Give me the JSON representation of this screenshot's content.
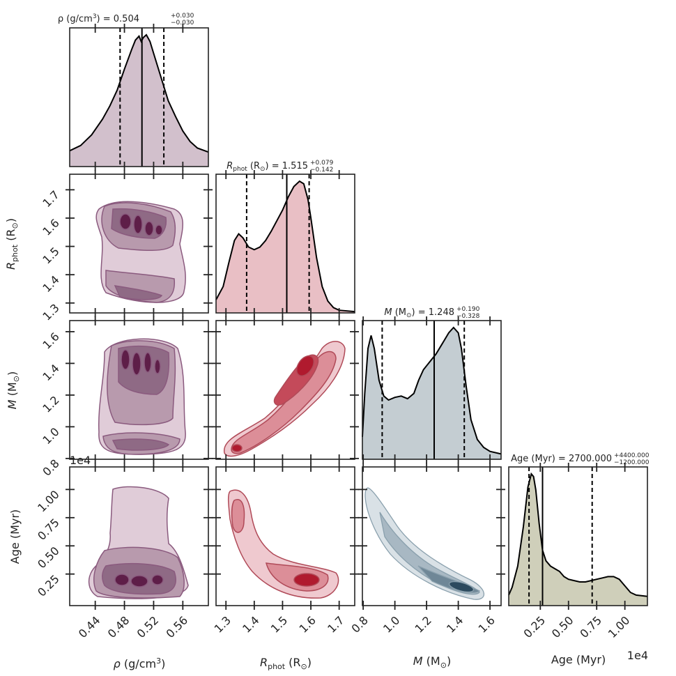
{
  "colors": {
    "rho": "#5e1e48",
    "rphot": "#b01a2e",
    "mass": "#2c4a5e",
    "age": "#8c8c5a",
    "kde_line": "#000000"
  },
  "chart_data": {
    "type": "corner",
    "parameters": [
      {
        "key": "rho",
        "axis_label": "ρ (g/cm³)",
        "title": "ρ (g/cm³) = 0.504",
        "title_main": "ρ (g/cm",
        "title_sup": "3",
        "title_tail": ") = 0.504",
        "err_plus": "+0.030",
        "err_minus": "−0.030",
        "range": [
          0.405,
          0.595
        ],
        "ticks": [
          0.44,
          0.48,
          0.52,
          0.56
        ],
        "tick_labels": [
          "0.44",
          "0.48",
          "0.52",
          "0.56"
        ],
        "median": 0.504,
        "lower": 0.474,
        "upper": 0.534,
        "kde_x": [
          0.405,
          0.42,
          0.435,
          0.45,
          0.46,
          0.47,
          0.48,
          0.49,
          0.495,
          0.5,
          0.503,
          0.506,
          0.51,
          0.515,
          0.52,
          0.53,
          0.54,
          0.55,
          0.56,
          0.57,
          0.58,
          0.595
        ],
        "kde_y": [
          0.12,
          0.16,
          0.24,
          0.36,
          0.46,
          0.58,
          0.74,
          0.89,
          0.96,
          0.99,
          0.95,
          0.98,
          1.0,
          0.95,
          0.86,
          0.68,
          0.5,
          0.38,
          0.27,
          0.19,
          0.14,
          0.11
        ]
      },
      {
        "key": "rphot",
        "axis_label": "Rphot (R⊙)",
        "title": "Rphot (R⊙) = 1.515",
        "err_plus": "+0.079",
        "err_minus": "−0.142",
        "range": [
          1.265,
          1.755
        ],
        "ticks": [
          1.3,
          1.4,
          1.5,
          1.6,
          1.7
        ],
        "tick_labels": [
          "1.3",
          "1.4",
          "1.5",
          "1.6",
          "1.7"
        ],
        "median": 1.515,
        "lower": 1.373,
        "upper": 1.594,
        "kde_x": [
          1.265,
          1.29,
          1.31,
          1.33,
          1.345,
          1.36,
          1.38,
          1.4,
          1.42,
          1.44,
          1.46,
          1.48,
          1.5,
          1.52,
          1.54,
          1.56,
          1.575,
          1.59,
          1.6,
          1.62,
          1.64,
          1.66,
          1.68,
          1.7,
          1.755
        ],
        "kde_y": [
          0.1,
          0.2,
          0.38,
          0.55,
          0.6,
          0.57,
          0.5,
          0.48,
          0.5,
          0.55,
          0.62,
          0.7,
          0.78,
          0.88,
          0.96,
          1.0,
          0.98,
          0.86,
          0.72,
          0.42,
          0.2,
          0.09,
          0.04,
          0.02,
          0.01
        ]
      },
      {
        "key": "mass",
        "axis_label": "M (M⊙)",
        "title": "M (M⊙) = 1.248",
        "err_plus": "+0.190",
        "err_minus": "−0.328",
        "range": [
          0.795,
          1.67
        ],
        "ticks": [
          0.8,
          1.0,
          1.2,
          1.4,
          1.6
        ],
        "tick_labels": [
          "0.8",
          "1.0",
          "1.2",
          "1.4",
          "1.6"
        ],
        "median": 1.248,
        "lower": 0.92,
        "upper": 1.438,
        "kde_x": [
          0.795,
          0.81,
          0.83,
          0.85,
          0.87,
          0.9,
          0.93,
          0.96,
          1.0,
          1.04,
          1.08,
          1.12,
          1.15,
          1.18,
          1.22,
          1.26,
          1.3,
          1.34,
          1.37,
          1.4,
          1.42,
          1.45,
          1.48,
          1.52,
          1.56,
          1.6,
          1.67
        ],
        "kde_y": [
          0.17,
          0.5,
          0.84,
          0.94,
          0.84,
          0.6,
          0.48,
          0.45,
          0.47,
          0.48,
          0.46,
          0.5,
          0.6,
          0.68,
          0.74,
          0.8,
          0.88,
          0.96,
          1.0,
          0.96,
          0.84,
          0.55,
          0.3,
          0.15,
          0.09,
          0.06,
          0.04
        ]
      },
      {
        "key": "age",
        "axis_label": "Age (Myr)",
        "title": "Age (Myr) = 2700.000",
        "err_plus": "+4400.000",
        "err_minus": "−1200.000",
        "range": [
          -0.03,
          1.2
        ],
        "ticks": [
          0.25,
          0.5,
          0.75,
          1.0
        ],
        "tick_labels": [
          "0.25",
          "0.50",
          "0.75",
          "1.00"
        ],
        "offset_label": "1e4",
        "median": 0.27,
        "lower": 0.15,
        "upper": 0.71,
        "kde_x": [
          -0.03,
          0.0,
          0.05,
          0.1,
          0.14,
          0.17,
          0.19,
          0.21,
          0.24,
          0.27,
          0.3,
          0.34,
          0.38,
          0.42,
          0.46,
          0.5,
          0.55,
          0.6,
          0.65,
          0.7,
          0.75,
          0.8,
          0.85,
          0.9,
          0.95,
          1.0,
          1.05,
          1.1,
          1.2
        ],
        "kde_y": [
          0.08,
          0.14,
          0.3,
          0.6,
          0.9,
          1.0,
          0.98,
          0.88,
          0.62,
          0.42,
          0.34,
          0.3,
          0.28,
          0.26,
          0.22,
          0.2,
          0.19,
          0.18,
          0.18,
          0.19,
          0.2,
          0.21,
          0.22,
          0.22,
          0.2,
          0.15,
          0.1,
          0.08,
          0.07
        ]
      }
    ]
  }
}
